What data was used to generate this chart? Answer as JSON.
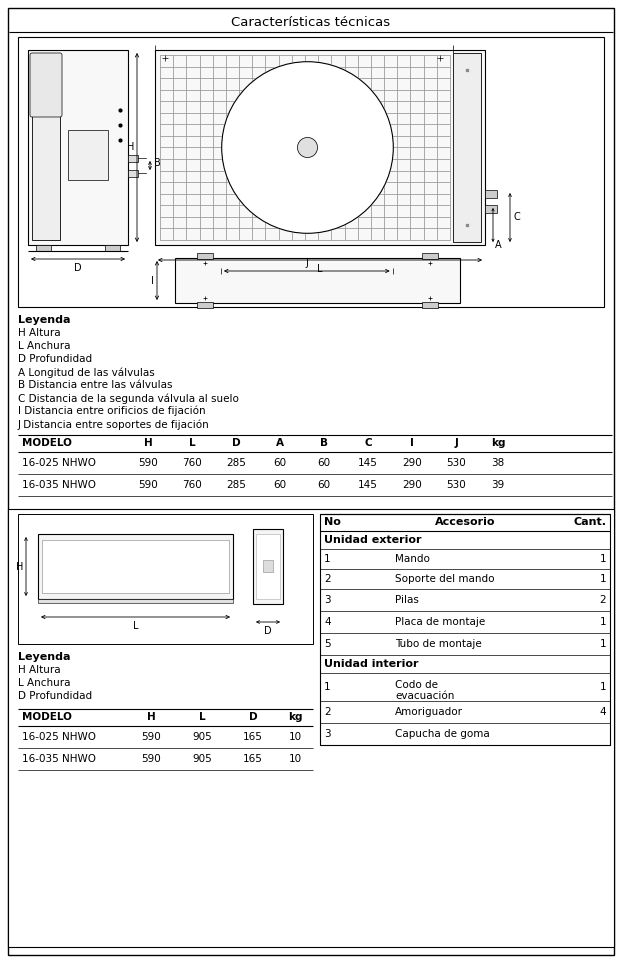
{
  "title": "Características técnicas",
  "bg_color": "#ffffff",
  "legend1_title": "Leyenda",
  "legend1_items": [
    "H Altura",
    "L Anchura",
    "D Profundidad",
    "A Longitud de las válvulas",
    "B Distancia entre las válvulas",
    "C Distancia de la segunda válvula al suelo",
    "I Distancia entre orificios de fijación",
    "J Distancia entre soportes de fijación"
  ],
  "table1_headers": [
    "MODELO",
    "H",
    "L",
    "D",
    "A",
    "B",
    "C",
    "I",
    "J",
    "kg"
  ],
  "table1_rows": [
    [
      "16-025 NHWO",
      "590",
      "760",
      "285",
      "60",
      "60",
      "145",
      "290",
      "530",
      "38"
    ],
    [
      "16-035 NHWO",
      "590",
      "760",
      "285",
      "60",
      "60",
      "145",
      "290",
      "530",
      "39"
    ]
  ],
  "legend2_title": "Leyenda",
  "legend2_items": [
    "H Altura",
    "L Anchura",
    "D Profundidad"
  ],
  "table2_headers": [
    "MODELO",
    "H",
    "L",
    "D",
    "kg"
  ],
  "table2_rows": [
    [
      "16-025 NHWO",
      "590",
      "905",
      "165",
      "10"
    ],
    [
      "16-035 NHWO",
      "590",
      "905",
      "165",
      "10"
    ]
  ],
  "acc_headers": [
    "No",
    "Accesorio",
    "Cant."
  ],
  "acc_section1": "Unidad exterior",
  "acc_section2": "Unidad interior",
  "acc_items_ext": [
    [
      "1",
      "Mando",
      "1"
    ],
    [
      "2",
      "Soporte del mando",
      "1"
    ],
    [
      "3",
      "Pilas",
      "2"
    ],
    [
      "4",
      "Placa de montaje",
      "1"
    ],
    [
      "5",
      "Tubo de montaje",
      "1"
    ]
  ],
  "acc_items_int": [
    [
      "1",
      "Codo de\nevacuación",
      "1"
    ],
    [
      "2",
      "Amoriguador",
      "4"
    ],
    [
      "3",
      "Capucha de goma",
      ""
    ]
  ]
}
